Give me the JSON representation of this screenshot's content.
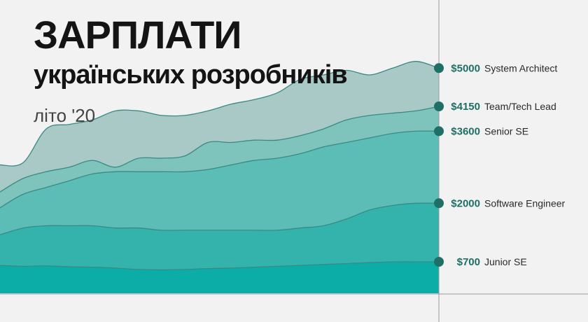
{
  "header": {
    "title": "ЗАРПЛАТИ",
    "subtitle": "українських розробників",
    "season": "літо '20"
  },
  "chart_data": {
    "type": "area",
    "title": "ЗАРПЛАТИ українських розробників",
    "subtitle": "літо '20",
    "ylim": [
      0,
      5300
    ],
    "grid": false,
    "colors": {
      "background": "#f2f2f2",
      "line": "#3a8a82",
      "endpoint": "#1e6f66",
      "value_label": "#1e6f66",
      "axis": "#9a9a9a"
    },
    "series": [
      {
        "name": "Junior SE",
        "value_label": "$700",
        "fill": "#0bada6",
        "values": [
          620,
          600,
          610,
          590,
          580,
          560,
          530,
          520,
          530,
          550,
          560,
          580,
          600,
          620,
          640,
          660,
          680,
          700,
          700,
          700
        ]
      },
      {
        "name": "Software Engineer",
        "value_label": "$2000",
        "fill": "#34b3ad",
        "values": [
          1300,
          1450,
          1500,
          1500,
          1500,
          1450,
          1450,
          1400,
          1400,
          1400,
          1400,
          1400,
          1400,
          1450,
          1500,
          1650,
          1850,
          1950,
          2000,
          2000
        ]
      },
      {
        "name": "Senior SE",
        "value_label": "$3600",
        "fill": "#5bbdb6",
        "values": [
          1900,
          2200,
          2350,
          2500,
          2650,
          2700,
          2700,
          2700,
          2700,
          2750,
          2850,
          2950,
          3000,
          3100,
          3250,
          3350,
          3450,
          3550,
          3600,
          3600
        ]
      },
      {
        "name": "Team/Tech Lead",
        "value_label": "$4150",
        "fill": "#7ec4bd",
        "values": [
          2250,
          2550,
          2700,
          2800,
          2950,
          2800,
          3000,
          3000,
          3050,
          3350,
          3350,
          3400,
          3400,
          3500,
          3650,
          3850,
          3950,
          4000,
          4050,
          4150
        ]
      },
      {
        "name": "System Architect",
        "value_label": "$5000",
        "fill": "#a8c9c5",
        "values": [
          2850,
          2900,
          3650,
          3750,
          3850,
          4050,
          4050,
          3950,
          3950,
          4050,
          4200,
          4300,
          4450,
          4750,
          4850,
          4950,
          4850,
          5000,
          5150,
          5000
        ]
      }
    ]
  }
}
